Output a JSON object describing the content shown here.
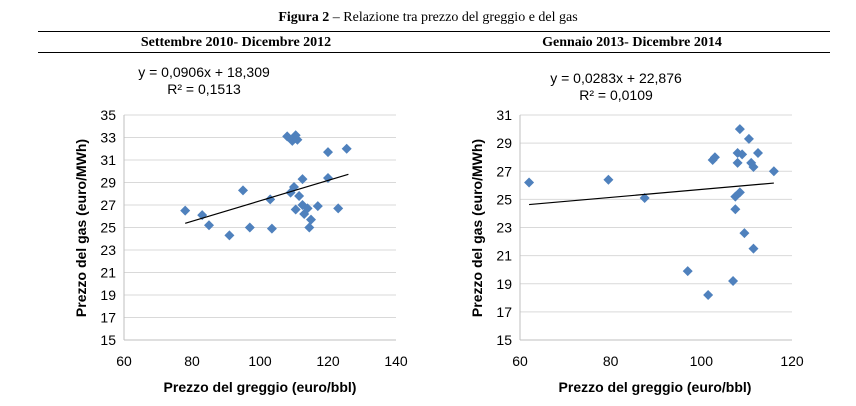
{
  "figure": {
    "label": "Figura 2",
    "separator": " – ",
    "caption": "Relazione tra prezzo del greggio e del gas"
  },
  "colors": {
    "marker": "#4f81bd",
    "trend": "#000000",
    "grid": "#d9d9d9"
  },
  "chart_data": [
    {
      "type": "scatter",
      "title": "Settembre 2010- Dicembre 2012",
      "xlabel": "Prezzo del greggio (euro/bbl)",
      "ylabel": "Prezzo del gas (euro/MWh)",
      "xlim": [
        60,
        140
      ],
      "ylim": [
        15,
        35
      ],
      "xticks": [
        "60",
        "80",
        "100",
        "120",
        "140"
      ],
      "yticks": [
        "15",
        "17",
        "19",
        "21",
        "23",
        "25",
        "27",
        "29",
        "31",
        "33",
        "35"
      ],
      "equation": "y = 0,0906x + 18,309",
      "r2": "R² = 0,1513",
      "trend": {
        "slope": 0.0906,
        "intercept": 18.309,
        "x_from": 78,
        "x_to": 126
      },
      "points": [
        [
          78,
          26.5
        ],
        [
          83,
          26.1
        ],
        [
          85,
          25.2
        ],
        [
          91,
          24.3
        ],
        [
          95,
          28.3
        ],
        [
          97,
          25.0
        ],
        [
          103,
          27.5
        ],
        [
          103.5,
          24.9
        ],
        [
          108,
          33.1
        ],
        [
          109.5,
          32.7
        ],
        [
          110.5,
          33.2
        ],
        [
          111,
          32.8
        ],
        [
          109,
          28.1
        ],
        [
          110,
          28.6
        ],
        [
          111.5,
          27.8
        ],
        [
          112.5,
          29.3
        ],
        [
          110.5,
          26.6
        ],
        [
          112.5,
          27.0
        ],
        [
          113,
          26.2
        ],
        [
          114,
          26.7
        ],
        [
          114.5,
          25.0
        ],
        [
          115,
          25.7
        ],
        [
          117,
          26.9
        ],
        [
          120,
          31.7
        ],
        [
          120,
          29.4
        ],
        [
          123,
          26.7
        ],
        [
          125.5,
          32.0
        ]
      ]
    },
    {
      "type": "scatter",
      "title": "Gennaio 2013- Dicembre 2014",
      "xlabel": "Prezzo del greggio (euro/bbl)",
      "ylabel": "Prezzo del gas (euro/MWh)",
      "xlim": [
        60,
        120
      ],
      "ylim": [
        15,
        31
      ],
      "xticks": [
        "60",
        "80",
        "100",
        "120"
      ],
      "yticks": [
        "15",
        "17",
        "19",
        "21",
        "23",
        "25",
        "27",
        "29",
        "31"
      ],
      "equation": "y = 0,0283x + 22,876",
      "r2": "R² = 0,0109",
      "trend": {
        "slope": 0.0283,
        "intercept": 22.876,
        "x_from": 62,
        "x_to": 116
      },
      "points": [
        [
          62,
          26.2
        ],
        [
          79.5,
          26.4
        ],
        [
          87.5,
          25.1
        ],
        [
          97,
          19.9
        ],
        [
          101.5,
          18.2
        ],
        [
          102.5,
          27.8
        ],
        [
          103,
          28.0
        ],
        [
          107,
          19.2
        ],
        [
          107.5,
          25.2
        ],
        [
          107.5,
          24.3
        ],
        [
          108,
          28.3
        ],
        [
          108,
          27.6
        ],
        [
          108.5,
          25.5
        ],
        [
          108.5,
          30.0
        ],
        [
          109,
          28.2
        ],
        [
          109.5,
          22.6
        ],
        [
          110.5,
          29.3
        ],
        [
          111,
          27.6
        ],
        [
          111.5,
          27.3
        ],
        [
          111.5,
          21.5
        ],
        [
          112.5,
          28.3
        ],
        [
          116,
          27.0
        ]
      ]
    }
  ]
}
